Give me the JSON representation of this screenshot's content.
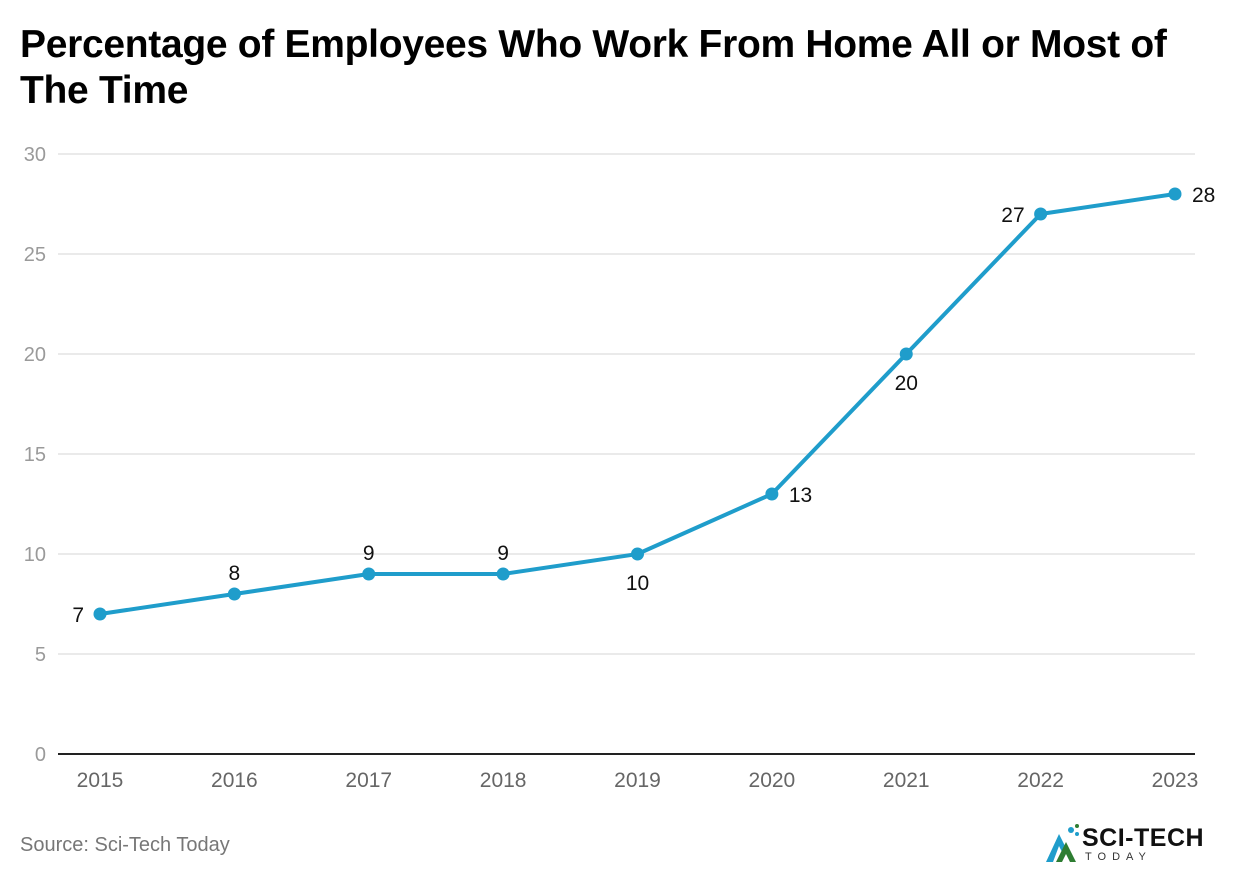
{
  "title": "Percentage of Employees Who Work From Home All or Most of The Time",
  "source": "Source: Sci-Tech Today",
  "logo": {
    "name": "SCI-TECH",
    "sub": "TODAY"
  },
  "colors": {
    "line": "#1f9dcb",
    "grid": "#e3e3e3",
    "axis": "#222222"
  },
  "chart_data": {
    "type": "line",
    "title": "Percentage of Employees Who Work From Home All or Most of The Time",
    "xlabel": "",
    "ylabel": "",
    "categories": [
      "2015",
      "2016",
      "2017",
      "2018",
      "2019",
      "2020",
      "2021",
      "2022",
      "2023"
    ],
    "series": [
      {
        "values": [
          7,
          8,
          9,
          9,
          10,
          13,
          20,
          27,
          28
        ]
      }
    ],
    "ylim": [
      0,
      30
    ],
    "yticks": [
      0,
      5,
      10,
      15,
      20,
      25,
      30
    ],
    "grid": true,
    "legend": "none"
  }
}
